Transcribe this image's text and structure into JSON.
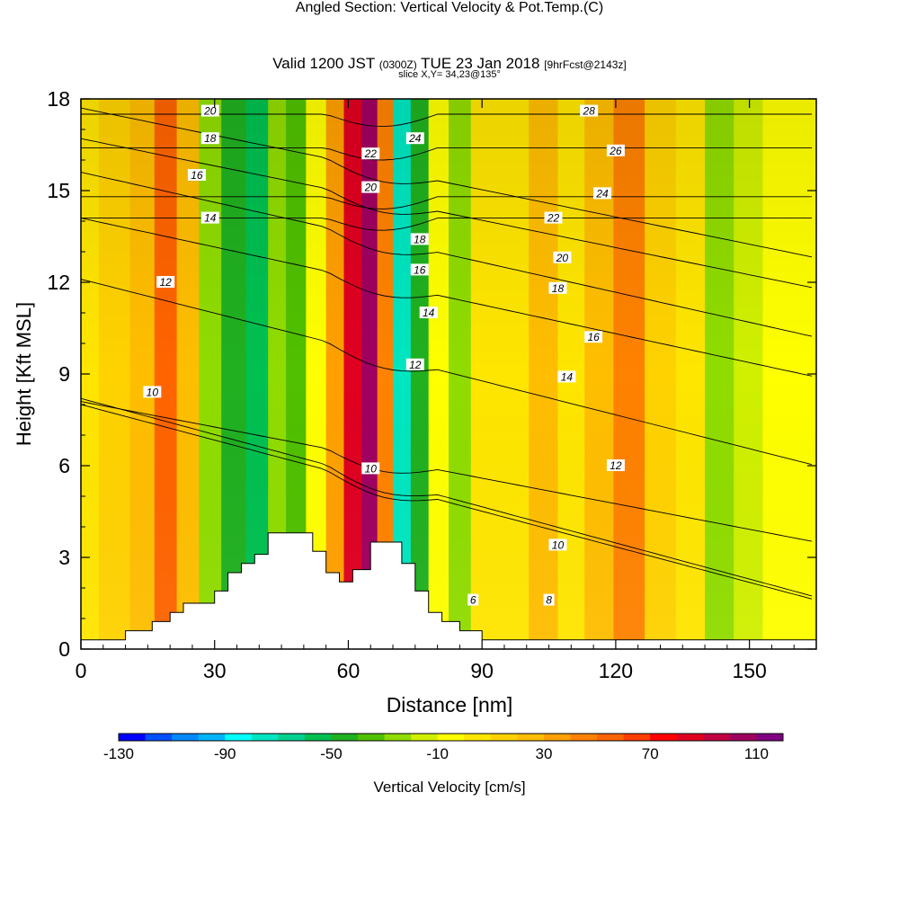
{
  "title": {
    "main": "Angled Section: Vertical Velocity & Pot.Temp.",
    "unit_tag": "(C)",
    "valid_prefix": "Valid 1200 JST",
    "valid_utc": "(0300Z)",
    "valid_date": "TUE 23 Jan 2018",
    "forecast_tag": "[9hrFcst@2143z]",
    "slice": "slice X,Y= 34,23@135°"
  },
  "chart_data": {
    "type": "heatmap",
    "xlabel": "Distance [nm]",
    "ylabel": "Height [Kft MSL]",
    "xlim": [
      0,
      165
    ],
    "ylim": [
      0,
      18
    ],
    "x_ticks": [
      0,
      30,
      60,
      90,
      120,
      150
    ],
    "y_ticks": [
      0,
      3,
      6,
      9,
      12,
      15,
      18
    ],
    "colorbar": {
      "label": "Vertical Velocity [cm/s]",
      "min": -130,
      "max": 120,
      "step": 10,
      "tick_labels": [
        "-130",
        "-90",
        "-50",
        "-10",
        "30",
        "70",
        "110"
      ],
      "tick_values": [
        -130,
        -90,
        -50,
        -10,
        30,
        70,
        110
      ],
      "colors": [
        "#0000ff",
        "#0050ff",
        "#0088ff",
        "#00b4ff",
        "#00ffff",
        "#00e6c0",
        "#00d090",
        "#00c050",
        "#20b020",
        "#50c000",
        "#90dc00",
        "#d0f000",
        "#ffff00",
        "#ffe600",
        "#ffd200",
        "#ffbe00",
        "#ffa000",
        "#ff8200",
        "#ff6400",
        "#ff3c00",
        "#ff0000",
        "#e00020",
        "#c00040",
        "#a00060",
        "#800080"
      ]
    },
    "velocity_columns": [
      {
        "x": 0,
        "v": 5
      },
      {
        "x": 8,
        "v": 10
      },
      {
        "x": 14,
        "v": 25
      },
      {
        "x": 19,
        "v": 50
      },
      {
        "x": 24,
        "v": 20
      },
      {
        "x": 29,
        "v": -25
      },
      {
        "x": 34,
        "v": -45
      },
      {
        "x": 40,
        "v": -55
      },
      {
        "x": 44,
        "v": -25
      },
      {
        "x": 48,
        "v": -40
      },
      {
        "x": 53,
        "v": -5
      },
      {
        "x": 57,
        "v": 35
      },
      {
        "x": 61,
        "v": 80
      },
      {
        "x": 65,
        "v": 100
      },
      {
        "x": 68,
        "v": 40
      },
      {
        "x": 72,
        "v": -80
      },
      {
        "x": 76,
        "v": -50
      },
      {
        "x": 80,
        "v": -5
      },
      {
        "x": 85,
        "v": -25
      },
      {
        "x": 90,
        "v": 0
      },
      {
        "x": 97,
        "v": 5
      },
      {
        "x": 104,
        "v": 20
      },
      {
        "x": 110,
        "v": 5
      },
      {
        "x": 116,
        "v": 25
      },
      {
        "x": 123,
        "v": 40
      },
      {
        "x": 130,
        "v": 15
      },
      {
        "x": 137,
        "v": 0
      },
      {
        "x": 143,
        "v": -25
      },
      {
        "x": 150,
        "v": -20
      },
      {
        "x": 156,
        "v": -5
      },
      {
        "x": 165,
        "v": -5
      }
    ],
    "terrain": [
      [
        0,
        0.3
      ],
      [
        10,
        0.3
      ],
      [
        10,
        0.6
      ],
      [
        16,
        0.6
      ],
      [
        16,
        0.9
      ],
      [
        20,
        0.9
      ],
      [
        20,
        1.2
      ],
      [
        23,
        1.2
      ],
      [
        23,
        1.5
      ],
      [
        30,
        1.5
      ],
      [
        30,
        1.9
      ],
      [
        33,
        1.9
      ],
      [
        33,
        2.5
      ],
      [
        36,
        2.5
      ],
      [
        36,
        2.8
      ],
      [
        39,
        2.8
      ],
      [
        39,
        3.1
      ],
      [
        42,
        3.1
      ],
      [
        42,
        3.8
      ],
      [
        52,
        3.8
      ],
      [
        52,
        3.2
      ],
      [
        55,
        3.2
      ],
      [
        55,
        2.5
      ],
      [
        58,
        2.5
      ],
      [
        58,
        2.2
      ],
      [
        61,
        2.2
      ],
      [
        61,
        2.6
      ],
      [
        65,
        2.6
      ],
      [
        65,
        3.5
      ],
      [
        72,
        3.5
      ],
      [
        72,
        2.8
      ],
      [
        75,
        2.8
      ],
      [
        75,
        1.9
      ],
      [
        78,
        1.9
      ],
      [
        78,
        1.2
      ],
      [
        81,
        1.2
      ],
      [
        81,
        0.9
      ],
      [
        85,
        0.9
      ],
      [
        85,
        0.6
      ],
      [
        90,
        0.6
      ],
      [
        90,
        0.3
      ],
      [
        165,
        0.3
      ]
    ],
    "contour_label_sets": {
      "left": {
        "6": 8.2,
        "8": 8.0,
        "10": 8.1,
        "12": 12.1,
        "14": 14.1,
        "16": 15.6,
        "18": 16.7,
        "20": 17.7
      },
      "right": {
        "6": 1.7,
        "8": 1.6,
        "10": 3.5,
        "12": 6.0,
        "14": 8.9,
        "16": 10.2,
        "18": 11.8,
        "20": 12.8,
        "22": 14.1,
        "24": 14.8,
        "26": 16.4,
        "28": 17.5
      }
    },
    "contour_labels": [
      {
        "text": "20",
        "x": 29,
        "y": 17.6
      },
      {
        "text": "18",
        "x": 29,
        "y": 16.7
      },
      {
        "text": "16",
        "x": 26,
        "y": 15.5
      },
      {
        "text": "14",
        "x": 29,
        "y": 14.1
      },
      {
        "text": "12",
        "x": 19,
        "y": 12.0
      },
      {
        "text": "10",
        "x": 16,
        "y": 8.4
      },
      {
        "text": "22",
        "x": 65,
        "y": 16.2
      },
      {
        "text": "20",
        "x": 65,
        "y": 15.1
      },
      {
        "text": "24",
        "x": 75,
        "y": 16.7
      },
      {
        "text": "18",
        "x": 76,
        "y": 13.4
      },
      {
        "text": "16",
        "x": 76,
        "y": 12.4
      },
      {
        "text": "14",
        "x": 78,
        "y": 11.0
      },
      {
        "text": "12",
        "x": 75,
        "y": 9.3
      },
      {
        "text": "10",
        "x": 65,
        "y": 5.9
      },
      {
        "text": "28",
        "x": 114,
        "y": 17.6
      },
      {
        "text": "26",
        "x": 120,
        "y": 16.3
      },
      {
        "text": "24",
        "x": 117,
        "y": 14.9
      },
      {
        "text": "22",
        "x": 106,
        "y": 14.1
      },
      {
        "text": "20",
        "x": 108,
        "y": 12.8
      },
      {
        "text": "18",
        "x": 107,
        "y": 11.8
      },
      {
        "text": "16",
        "x": 115,
        "y": 10.2
      },
      {
        "text": "14",
        "x": 109,
        "y": 8.9
      },
      {
        "text": "12",
        "x": 120,
        "y": 6.0
      },
      {
        "text": "10",
        "x": 107,
        "y": 3.4
      },
      {
        "text": "8",
        "x": 105,
        "y": 1.6
      },
      {
        "text": "6",
        "x": 88,
        "y": 1.6
      }
    ]
  }
}
